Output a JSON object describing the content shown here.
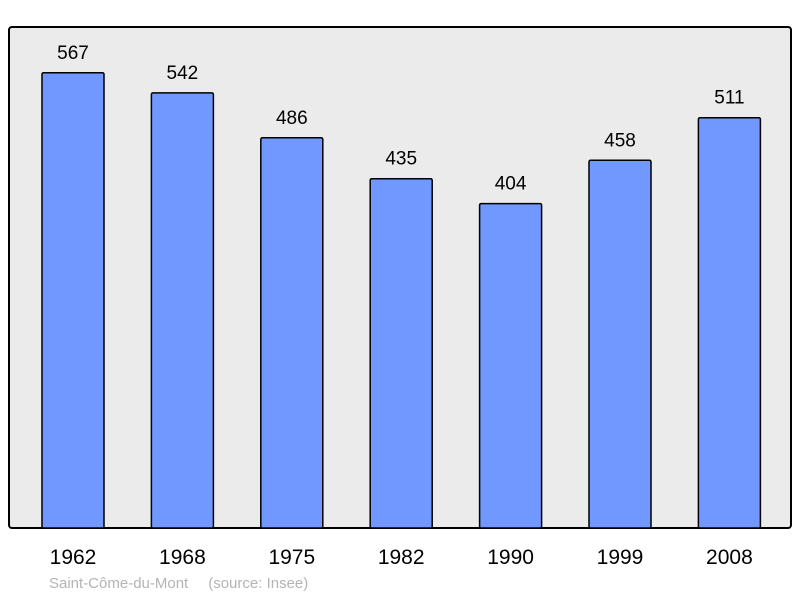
{
  "chart_data": {
    "type": "bar",
    "categories": [
      "1962",
      "1968",
      "1975",
      "1982",
      "1990",
      "1999",
      "2008"
    ],
    "values": [
      567,
      542,
      486,
      435,
      404,
      458,
      511
    ],
    "title": "",
    "xlabel": "",
    "ylabel": "",
    "ylim": [
      0,
      624
    ],
    "grid": false,
    "data_labels": true,
    "colors": {
      "bar": "#7098ff",
      "plot_background": "#ebebeb",
      "border": "#000000"
    }
  },
  "footer": {
    "place": "Saint-Côme-du-Mont",
    "source": "(source: Insee)"
  }
}
